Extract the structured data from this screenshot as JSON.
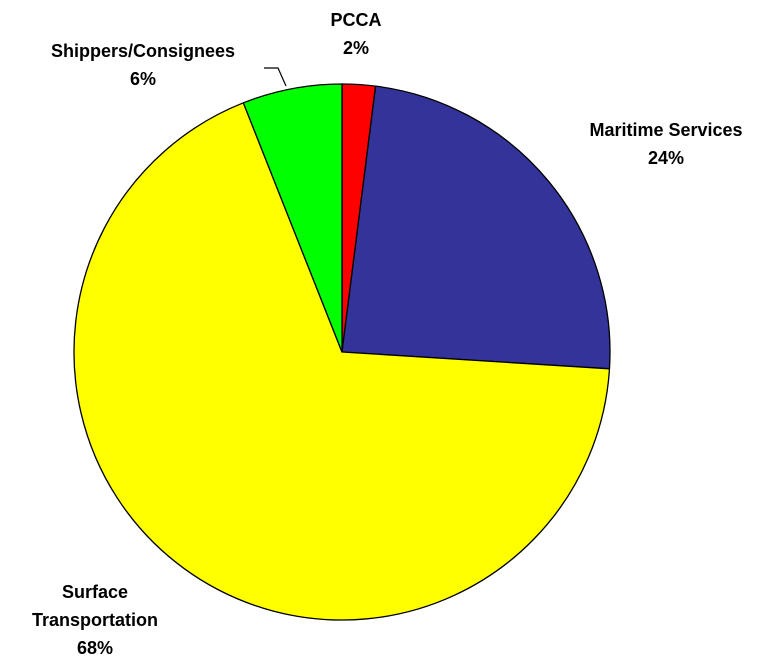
{
  "chart_data": {
    "type": "pie",
    "title": "",
    "slices": [
      {
        "label": "PCCA",
        "percent_label": "2%",
        "value": 2,
        "color": "#ff0000"
      },
      {
        "label": "Maritime Services",
        "percent_label": "24%",
        "value": 24,
        "color": "#333399"
      },
      {
        "label": "Surface Transportation",
        "percent_label": "68%",
        "value": 68,
        "color": "#ffff00"
      },
      {
        "label": "Shippers/Consignees",
        "percent_label": "6%",
        "value": 6,
        "color": "#00ff00"
      }
    ],
    "start": "top",
    "direction": "clockwise",
    "legend": "none"
  }
}
